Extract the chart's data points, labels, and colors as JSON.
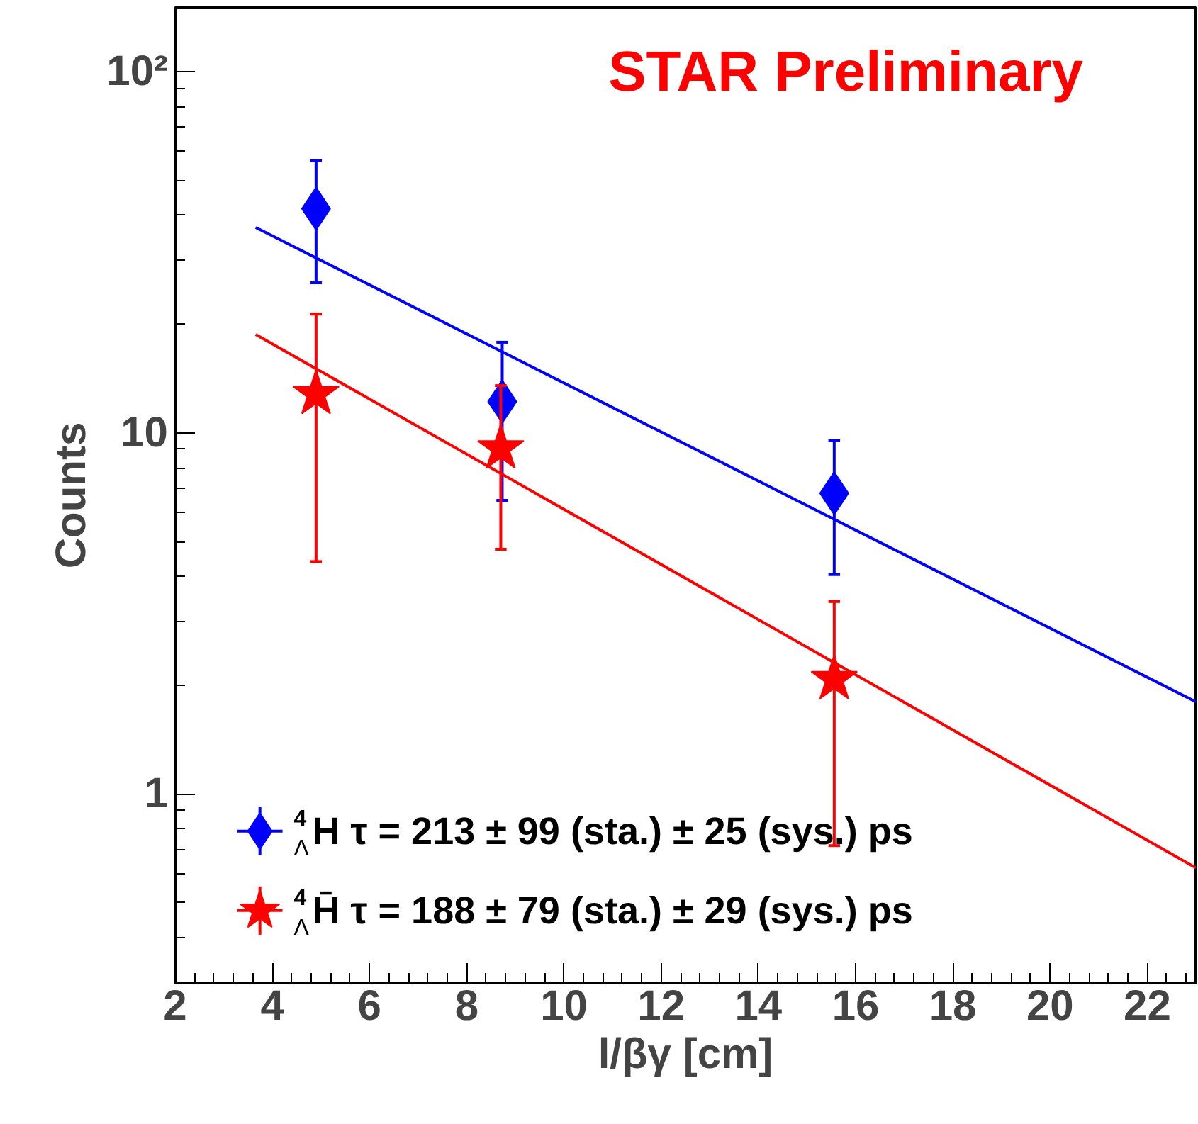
{
  "chart_data": {
    "type": "scatter",
    "xlabel": "l/βγ [cm]",
    "ylabel": "Counts",
    "annotations": [
      "STAR Preliminary"
    ],
    "log": "y",
    "grid": false,
    "legend": "bottom left",
    "xlim": [
      2,
      23
    ],
    "ylim": [
      0.3,
      150
    ],
    "xticks": [
      2,
      4,
      6,
      8,
      10,
      12,
      14,
      16,
      18,
      20,
      22
    ],
    "yticks": [
      1,
      10,
      {
        "value": 100,
        "label": "10²"
      }
    ],
    "series": [
      {
        "name": "$^{4}$$_{Λ}$H τ = 213 ± 99 (sta.) ± 25 (sys.) ps",
        "color": "#0000ff",
        "marker": "diamond",
        "x": [
          4.9,
          8.73,
          15.56
        ],
        "values": [
          41.7,
          12.2,
          6.8
        ],
        "errors": [
          [
            26,
            56.6
          ],
          [
            6.5,
            17.8
          ],
          [
            4.05,
            9.5
          ]
        ]
      },
      {
        "name": "$^{4}$$_{Λ}$H̄ τ = 188 ± 79 (sta.) ± 29 (sys.) ps",
        "color": "#ff0000",
        "marker": "star",
        "x": [
          4.9,
          8.7,
          15.56
        ],
        "values": [
          12.8,
          9.05,
          2.08
        ],
        "errors": [
          [
            4.4,
            21.3
          ],
          [
            4.76,
            13.5
          ],
          [
            0.72,
            3.41
          ]
        ]
      },
      {
        "type": "line",
        "color": "#0000ff",
        "x": [
          3.66,
          23
        ],
        "values": [
          37,
          1.8
        ]
      },
      {
        "type": "line",
        "color": "#ff0000",
        "x": [
          3.66,
          23
        ],
        "values": [
          18.7,
          0.625
        ]
      }
    ]
  }
}
